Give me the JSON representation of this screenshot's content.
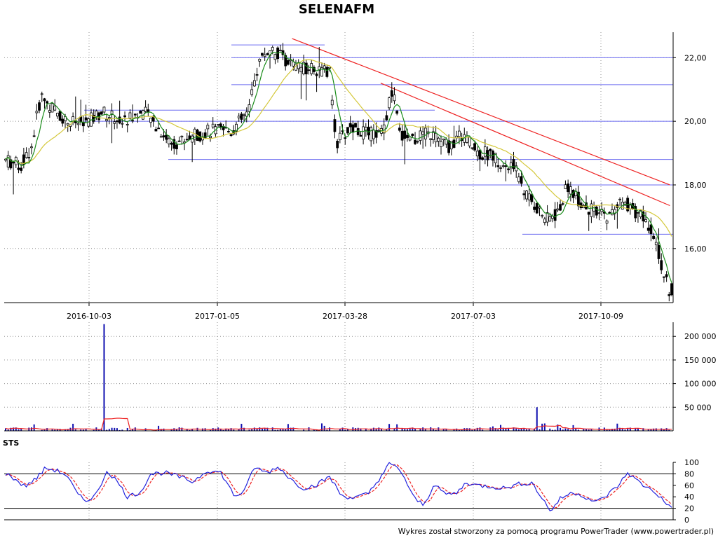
{
  "chart_data": [
    {
      "type": "candlestick",
      "title": "SELENAFM",
      "x_tick_labels": [
        "2016-10-03",
        "2017-01-05",
        "2017-03-28",
        "2017-07-03",
        "2017-10-09"
      ],
      "y_tick_labels": [
        "22,00",
        "20,00",
        "18,00",
        "16,00"
      ],
      "y_ticks": [
        22,
        20,
        18,
        16
      ],
      "ylim": [
        14.3,
        22.8
      ],
      "grid": true,
      "colors": {
        "candle": "#000000",
        "ma_short": "#1a8c1a",
        "ma_long": "#d4c83a",
        "support_lines": "#6a6af0",
        "trend_lines": "#ee2222"
      },
      "support_levels": [
        22.4,
        22.0,
        21.15,
        20.35,
        20.0,
        18.8,
        18.0,
        16.45
      ],
      "trend_lines": [
        {
          "from": [
            "2017-02-22",
            22.6
          ],
          "to": [
            "2017-12-01",
            18.0
          ]
        },
        {
          "from": [
            "2017-04-24",
            21.2
          ],
          "to": [
            "2017-12-01",
            17.35
          ]
        }
      ]
    },
    {
      "type": "bar",
      "title": "",
      "y_tick_labels": [
        "200 000",
        "150 000",
        "100 000",
        "50 000"
      ],
      "y_ticks": [
        200000,
        150000,
        100000,
        50000
      ],
      "ylim": [
        0,
        230000
      ],
      "colors": {
        "bars": "#1010b0",
        "average": "#ee2222"
      }
    },
    {
      "type": "line",
      "title": "STS",
      "y_tick_labels": [
        "100",
        "80",
        "60",
        "40",
        "20",
        "0"
      ],
      "y_ticks": [
        100,
        80,
        60,
        40,
        20,
        0
      ],
      "ylim": [
        0,
        100
      ],
      "reference_lines": [
        80,
        20
      ],
      "colors": {
        "sts": "#2222dd",
        "signal": "#ee2222"
      }
    }
  ],
  "footer": {
    "text": "Wykres został stworzony za pomocą programu PowerTrader (www.powertrader.pl)"
  }
}
